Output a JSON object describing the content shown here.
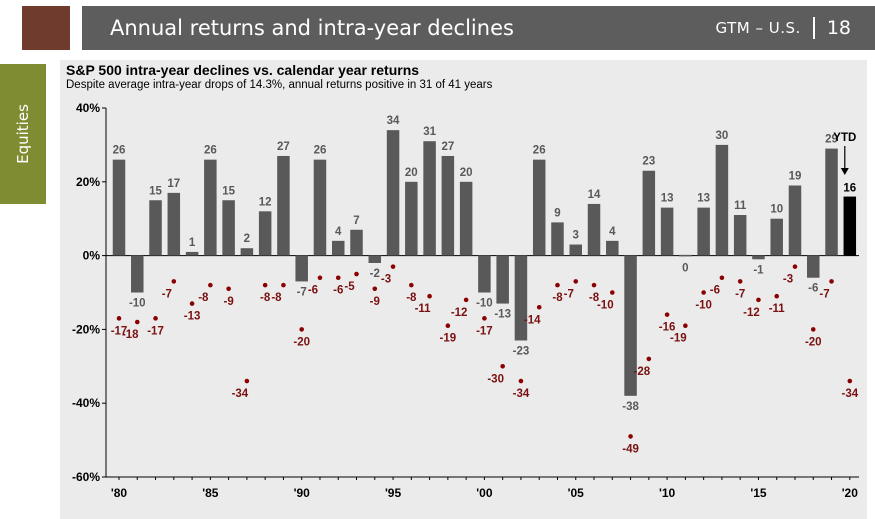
{
  "header": {
    "title": "Annual returns and intra-year declines",
    "section_code": "GTM – U.S.",
    "page_number": "18"
  },
  "side_tab": {
    "label": "Equities"
  },
  "colors": {
    "header_bg": "#5d5d5d",
    "header_accent": "#6e3b2d",
    "side_tab": "#7f8c32",
    "bar": "#595959",
    "ytd_bar": "#000000",
    "decline_dot": "#8b0000",
    "panel_bg": "#ebebeb"
  },
  "chart_data": {
    "type": "bar",
    "title": "S&P 500 intra-year declines vs. calendar year returns",
    "subtitle": "Despite average intra-year drops of 14.3%, annual returns positive in 31 of 41 years",
    "ylim": [
      -60,
      40
    ],
    "y_ticks": [
      "40%",
      "20%",
      "0%",
      "-20%",
      "-40%",
      "-60%"
    ],
    "x_tick_labels": [
      "'80",
      "'85",
      "'90",
      "'95",
      "'00",
      "'05",
      "'10",
      "'15",
      "'20"
    ],
    "years": [
      1980,
      1981,
      1982,
      1983,
      1984,
      1985,
      1986,
      1987,
      1988,
      1989,
      1990,
      1991,
      1992,
      1993,
      1994,
      1995,
      1996,
      1997,
      1998,
      1999,
      2000,
      2001,
      2002,
      2003,
      2004,
      2005,
      2006,
      2007,
      2008,
      2009,
      2010,
      2011,
      2012,
      2013,
      2014,
      2015,
      2016,
      2017,
      2018,
      2019,
      2020
    ],
    "series": [
      {
        "name": "Calendar year return",
        "values": [
          26,
          -10,
          15,
          17,
          1,
          26,
          15,
          2,
          12,
          27,
          -7,
          26,
          4,
          7,
          -2,
          34,
          20,
          31,
          27,
          20,
          -10,
          -13,
          -23,
          26,
          9,
          3,
          14,
          4,
          -38,
          23,
          13,
          0,
          13,
          30,
          11,
          -1,
          10,
          19,
          -6,
          29,
          16
        ]
      },
      {
        "name": "Intra-year decline",
        "values": [
          -17,
          -18,
          -17,
          -7,
          -13,
          -8,
          -9,
          -34,
          -8,
          -8,
          -20,
          -6,
          -6,
          -5,
          -9,
          -3,
          -8,
          -11,
          -19,
          -12,
          -17,
          -30,
          -34,
          -14,
          -8,
          -7,
          -8,
          -10,
          -49,
          -28,
          -16,
          -19,
          -10,
          -6,
          -7,
          -12,
          -11,
          -3,
          -20,
          -7,
          -34
        ]
      }
    ],
    "ytd_label": "YTD",
    "ytd_year": 2020,
    "grid": false,
    "legend": "none"
  }
}
